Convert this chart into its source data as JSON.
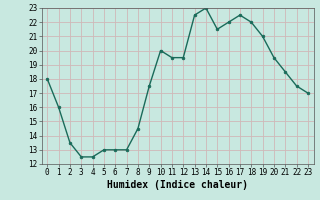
{
  "x": [
    0,
    1,
    2,
    3,
    4,
    5,
    6,
    7,
    8,
    9,
    10,
    11,
    12,
    13,
    14,
    15,
    16,
    17,
    18,
    19,
    20,
    21,
    22,
    23
  ],
  "y": [
    18,
    16,
    13.5,
    12.5,
    12.5,
    13,
    13,
    13,
    14.5,
    17.5,
    20,
    19.5,
    19.5,
    22.5,
    23,
    21.5,
    22,
    22.5,
    22,
    21,
    19.5,
    18.5,
    17.5,
    17
  ],
  "line_color": "#1a6b5a",
  "marker_color": "#1a6b5a",
  "bg_color": "#c8e8e0",
  "grid_color": "#d0b8b8",
  "xlabel": "Humidex (Indice chaleur)",
  "xlim": [
    -0.5,
    23.5
  ],
  "ylim": [
    12,
    23
  ],
  "yticks": [
    12,
    13,
    14,
    15,
    16,
    17,
    18,
    19,
    20,
    21,
    22,
    23
  ],
  "xticks": [
    0,
    1,
    2,
    3,
    4,
    5,
    6,
    7,
    8,
    9,
    10,
    11,
    12,
    13,
    14,
    15,
    16,
    17,
    18,
    19,
    20,
    21,
    22,
    23
  ],
  "tick_fontsize": 5.5,
  "xlabel_fontsize": 7,
  "linewidth": 1.0,
  "markersize": 2.0
}
